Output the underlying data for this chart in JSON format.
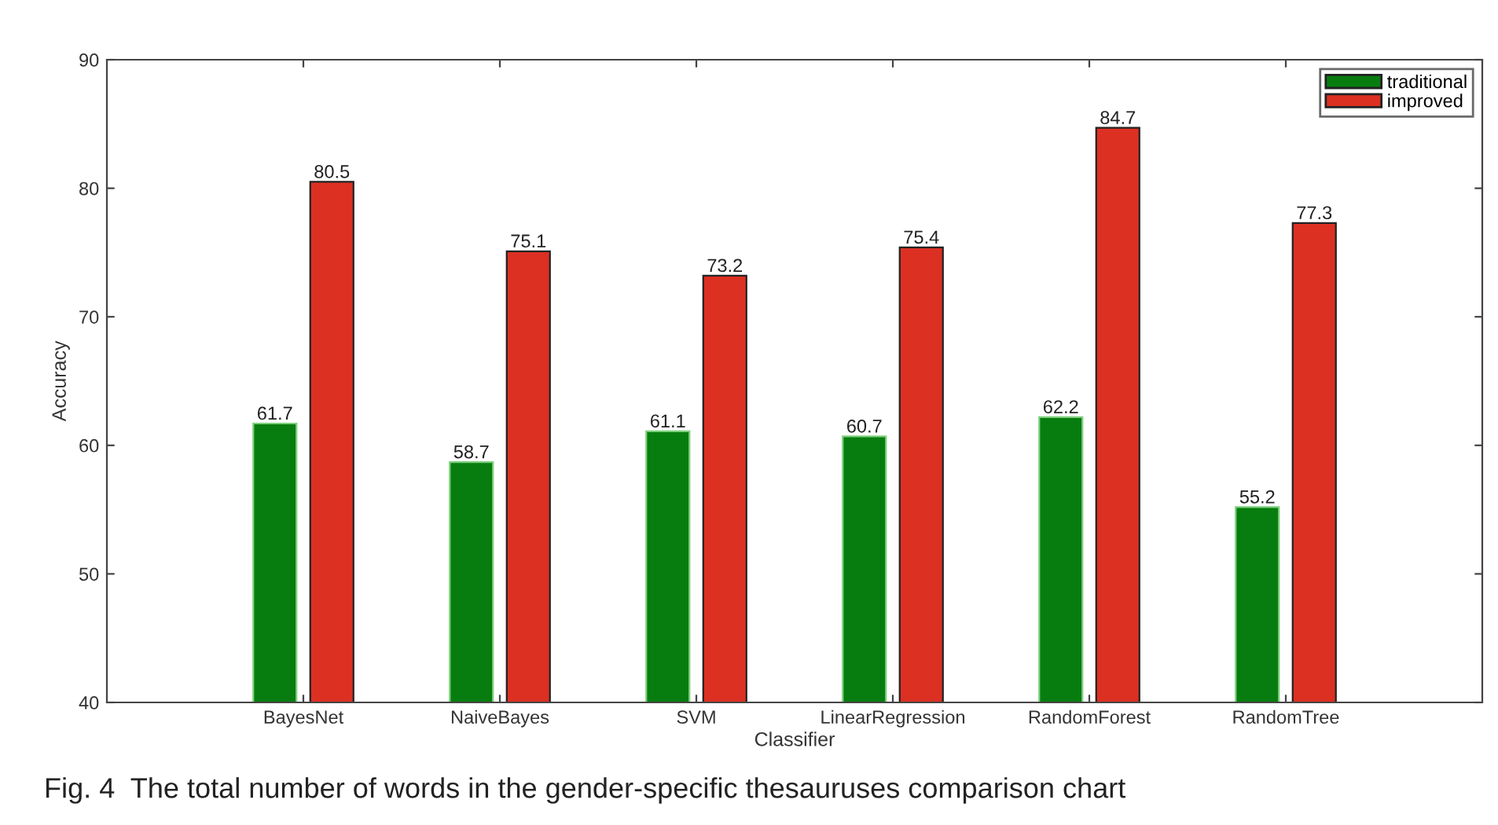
{
  "chart_data": {
    "type": "bar",
    "xlabel": "Classifier",
    "ylabel": "Accuracy",
    "categories": [
      "BayesNet",
      "NaiveBayes",
      "SVM",
      "LinearRegression",
      "RandomForest",
      "RandomTree"
    ],
    "series": [
      {
        "name": "traditional",
        "color": "#087d0f",
        "values": [
          61.7,
          58.7,
          61.1,
          60.7,
          62.2,
          55.2
        ]
      },
      {
        "name": "improved",
        "color": "#dc3023",
        "values": [
          80.5,
          75.1,
          73.2,
          75.4,
          84.7,
          77.3
        ]
      }
    ],
    "ylim": [
      40,
      90
    ],
    "yticks": [
      40,
      50,
      60,
      70,
      80,
      90
    ],
    "data_labels": true,
    "grid": false,
    "legend": "top right",
    "annotations": [
      "Fig. 4  The total number of words in the gender-specific thesauruses comparison chart"
    ]
  }
}
